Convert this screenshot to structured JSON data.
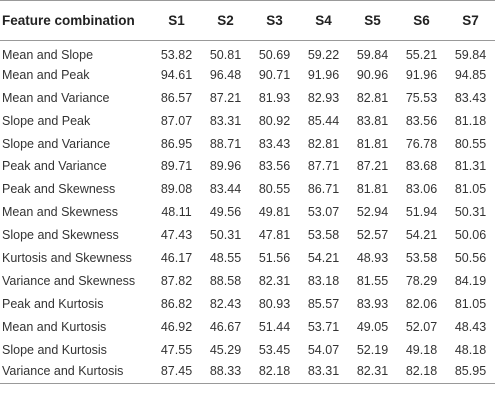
{
  "table": {
    "header": [
      "Feature combination",
      "S1",
      "S2",
      "S3",
      "S4",
      "S5",
      "S6",
      "S7"
    ],
    "rows": [
      {
        "feature": "Mean and Slope",
        "values": [
          "53.82",
          "50.81",
          "50.69",
          "59.22",
          "59.84",
          "55.21",
          "59.84"
        ]
      },
      {
        "feature": "Mean and Peak",
        "values": [
          "94.61",
          "96.48",
          "90.71",
          "91.96",
          "90.96",
          "91.96",
          "94.85"
        ]
      },
      {
        "feature": "Mean and Variance",
        "values": [
          "86.57",
          "87.21",
          "81.93",
          "82.93",
          "82.81",
          "75.53",
          "83.43"
        ]
      },
      {
        "feature": "Slope and Peak",
        "values": [
          "87.07",
          "83.31",
          "80.92",
          "85.44",
          "83.81",
          "83.56",
          "81.18"
        ]
      },
      {
        "feature": "Slope and Variance",
        "values": [
          "86.95",
          "88.71",
          "83.43",
          "82.81",
          "81.81",
          "76.78",
          "80.55"
        ]
      },
      {
        "feature": "Peak and Variance",
        "values": [
          "89.71",
          "89.96",
          "83.56",
          "87.71",
          "87.21",
          "83.68",
          "81.31"
        ]
      },
      {
        "feature": "Peak and Skewness",
        "values": [
          "89.08",
          "83.44",
          "80.55",
          "86.71",
          "81.81",
          "83.06",
          "81.05"
        ]
      },
      {
        "feature": "Mean and Skewness",
        "values": [
          "48.11",
          "49.56",
          "49.81",
          "53.07",
          "52.94",
          "51.94",
          "50.31"
        ]
      },
      {
        "feature": "Slope and Skewness",
        "values": [
          "47.43",
          "50.31",
          "47.81",
          "53.58",
          "52.57",
          "54.21",
          "50.06"
        ]
      },
      {
        "feature": "Kurtosis and Skewness",
        "values": [
          "46.17",
          "48.55",
          "51.56",
          "54.21",
          "48.93",
          "53.58",
          "50.56"
        ]
      },
      {
        "feature": "Variance and Skewness",
        "values": [
          "87.82",
          "88.58",
          "82.31",
          "83.18",
          "81.55",
          "78.29",
          "84.19"
        ]
      },
      {
        "feature": "Peak and Kurtosis",
        "values": [
          "86.82",
          "82.43",
          "80.93",
          "85.57",
          "83.93",
          "82.06",
          "81.05"
        ]
      },
      {
        "feature": "Mean and Kurtosis",
        "values": [
          "46.92",
          "46.67",
          "51.44",
          "53.71",
          "49.05",
          "52.07",
          "48.43"
        ]
      },
      {
        "feature": "Slope and Kurtosis",
        "values": [
          "47.55",
          "45.29",
          "53.45",
          "54.07",
          "52.19",
          "49.18",
          "48.18"
        ]
      },
      {
        "feature": "Variance and Kurtosis",
        "values": [
          "87.45",
          "88.33",
          "82.18",
          "83.31",
          "82.31",
          "82.18",
          "85.95"
        ]
      }
    ]
  }
}
